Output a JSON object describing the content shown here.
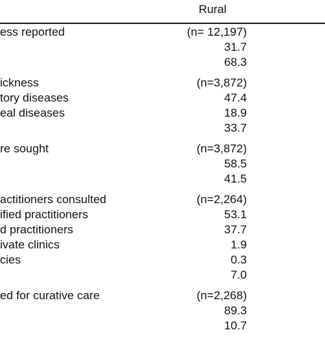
{
  "table": {
    "column_header": "Rural",
    "sections": [
      {
        "rows": [
          {
            "label": "ess reported",
            "value": "(n= 12,197)"
          },
          {
            "label": "",
            "value": "31.7"
          },
          {
            "label": "",
            "value": "68.3"
          }
        ]
      },
      {
        "rows": [
          {
            "label": "ickness",
            "value": "(n=3,872)"
          },
          {
            "label": "tory diseases",
            "value": "47.4"
          },
          {
            "label": "eal diseases",
            "value": "18.9"
          },
          {
            "label": "",
            "value": "33.7"
          }
        ]
      },
      {
        "rows": [
          {
            "label": "re sought",
            "value": "(n=3,872)"
          },
          {
            "label": "",
            "value": "58.5"
          },
          {
            "label": "",
            "value": "41.5"
          }
        ]
      },
      {
        "rows": [
          {
            "label": "actitioners consulted",
            "value": "(n=2,264)"
          },
          {
            "label": "ified practitioners",
            "value": "53.1"
          },
          {
            "label": "d practitioners",
            "value": "37.7"
          },
          {
            "label": "ivate clinics",
            "value": "1.9"
          },
          {
            "label": "cies",
            "value": "0.3"
          },
          {
            "label": "",
            "value": "7.0"
          }
        ]
      },
      {
        "rows": [
          {
            "label": "ed for curative care",
            "value": "(n=2,268)"
          },
          {
            "label": "",
            "value": "89.3"
          },
          {
            "label": "",
            "value": "10.7"
          }
        ]
      }
    ]
  }
}
